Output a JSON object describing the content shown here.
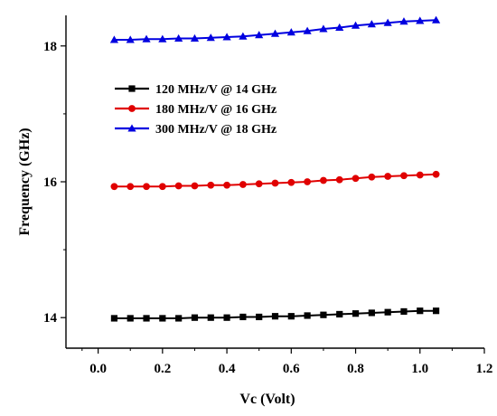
{
  "chart_data": {
    "type": "line",
    "title": "",
    "xlabel": "Vc (Volt)",
    "ylabel": "Frequency (GHz)",
    "xlim": [
      -0.1,
      1.2
    ],
    "ylim": [
      13.55,
      18.45
    ],
    "xticks": [
      0.0,
      0.2,
      0.4,
      0.6,
      0.8,
      1.0,
      1.2
    ],
    "xtick_labels": [
      "0.0",
      "0.2",
      "0.4",
      "0.6",
      "0.8",
      "1.0",
      "1.2"
    ],
    "yticks": [
      14,
      16,
      18
    ],
    "ytick_labels": [
      "14",
      "16",
      "18"
    ],
    "grid": false,
    "legend_position": "upper-left",
    "x": [
      0.05,
      0.1,
      0.15,
      0.2,
      0.25,
      0.3,
      0.35,
      0.4,
      0.45,
      0.5,
      0.55,
      0.6,
      0.65,
      0.7,
      0.75,
      0.8,
      0.85,
      0.9,
      0.95,
      1.0,
      1.05
    ],
    "series": [
      {
        "name": "120 MHz/V @ 14 GHz",
        "color": "#000000",
        "marker": "square",
        "values": [
          13.99,
          13.99,
          13.99,
          13.99,
          13.99,
          14.0,
          14.0,
          14.0,
          14.01,
          14.01,
          14.02,
          14.02,
          14.03,
          14.04,
          14.05,
          14.06,
          14.07,
          14.08,
          14.09,
          14.1,
          14.1
        ]
      },
      {
        "name": "180 MHz/V @ 16 GHz",
        "color": "#e00000",
        "marker": "circle",
        "values": [
          15.93,
          15.93,
          15.93,
          15.93,
          15.94,
          15.94,
          15.95,
          15.95,
          15.96,
          15.97,
          15.98,
          15.99,
          16.0,
          16.02,
          16.03,
          16.05,
          16.07,
          16.08,
          16.09,
          16.1,
          16.11
        ]
      },
      {
        "name": "300 MHz/V @ 18 GHz",
        "color": "#0000e0",
        "marker": "triangle",
        "values": [
          18.09,
          18.09,
          18.1,
          18.1,
          18.11,
          18.11,
          18.12,
          18.13,
          18.14,
          18.16,
          18.18,
          18.2,
          18.22,
          18.25,
          18.27,
          18.3,
          18.32,
          18.34,
          18.36,
          18.37,
          18.38
        ]
      }
    ]
  }
}
